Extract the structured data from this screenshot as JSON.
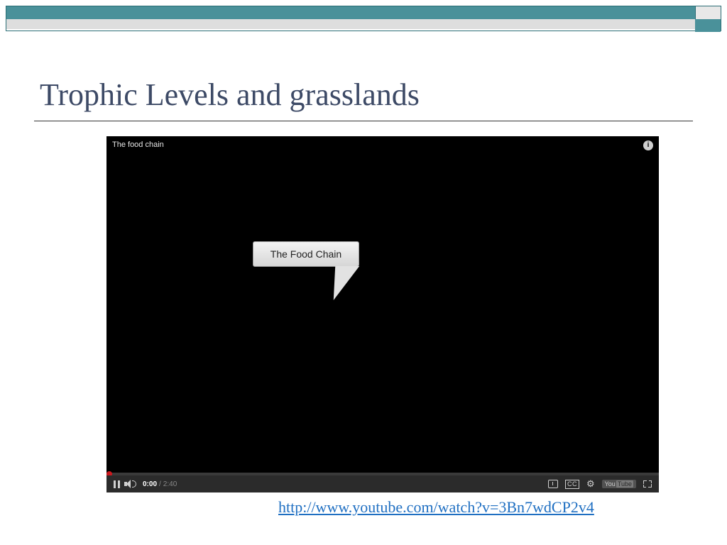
{
  "header": {
    "teal_color": "#4a919a",
    "gray_color": "#dedede",
    "border_color": "#2a6d75"
  },
  "slide": {
    "title": "Trophic Levels and grasslands",
    "title_color": "#3d4a66"
  },
  "video": {
    "title": "The food chain",
    "info_symbol": "i",
    "bubble_text": "The Food Chain",
    "time_current": "0:00",
    "time_total": "2:40",
    "cc_label": "CC",
    "yt_you": "You",
    "yt_tube": "Tube",
    "background": "#000000",
    "controls_bg": "#2b2b2b",
    "progress_color": "#cc181e"
  },
  "link": {
    "url_text": "http://www.youtube.com/watch?v=3Bn7wdCP2v4",
    "color": "#1f6fc2"
  }
}
